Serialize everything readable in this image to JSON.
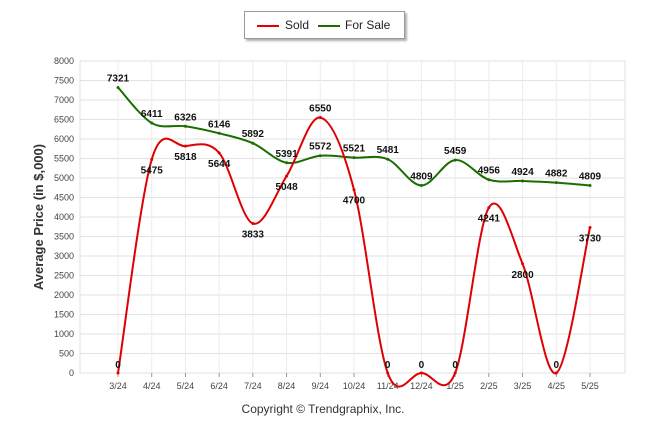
{
  "chart_data": {
    "type": "line",
    "title": "",
    "xlabel": "",
    "ylabel": "Average Price (in $,000)",
    "categories": [
      "3/24",
      "4/24",
      "5/24",
      "6/24",
      "7/24",
      "8/24",
      "9/24",
      "10/24",
      "11/24",
      "12/24",
      "1/25",
      "2/25",
      "3/25",
      "4/25",
      "5/25"
    ],
    "ylim": [
      0,
      8000
    ],
    "yticks": [
      0,
      500,
      1000,
      1500,
      2000,
      2500,
      3000,
      3500,
      4000,
      4500,
      5000,
      5500,
      6000,
      6500,
      7000,
      7500,
      8000
    ],
    "grid": true,
    "legend_position": "top-center",
    "series": [
      {
        "name": "Sold",
        "color": "#e00000",
        "values": [
          0,
          5475,
          5818,
          5644,
          3833,
          5048,
          6550,
          4700,
          0,
          0,
          0,
          4241,
          2800,
          0,
          3730
        ],
        "labels": [
          "0",
          "5475",
          "5818",
          "5644",
          "3833",
          "5048",
          "6550",
          "4700",
          "0",
          "0",
          "0",
          "4241",
          "2800",
          "0",
          "3730"
        ]
      },
      {
        "name": "For Sale",
        "color": "#1a6e00",
        "values": [
          7321,
          6411,
          6326,
          6146,
          5892,
          5391,
          5572,
          5521,
          5481,
          4809,
          5459,
          4956,
          4924,
          4882,
          4809
        ],
        "labels": [
          "7321",
          "6411",
          "6326",
          "6146",
          "5892",
          "5391",
          "5572",
          "5521",
          "5481",
          "4809",
          "5459",
          "4956",
          "4924",
          "4882",
          "4809"
        ]
      }
    ]
  },
  "legend": {
    "sold": "Sold",
    "for_sale": "For Sale"
  },
  "footer": "Copyright © Trendgraphix, Inc."
}
